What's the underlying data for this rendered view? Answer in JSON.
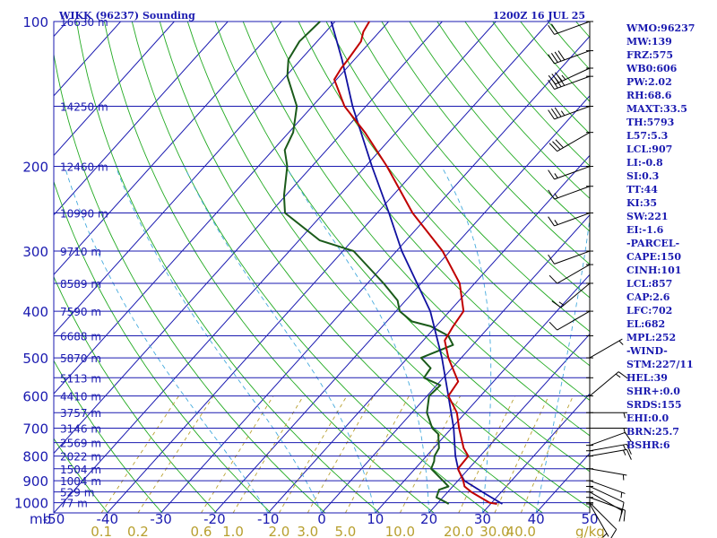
{
  "header": {
    "station": "WIKK (96237) Sounding",
    "time": "1200Z 16 JUL 25"
  },
  "axis": {
    "pressure_unit": "mb",
    "mixing_ratio_unit": "g/kg"
  },
  "indices": [
    "WMO:96237",
    "MW:139",
    "FRZ:575",
    "WB0:606",
    "PW:2.02",
    "RH:68.6",
    "MAXT:33.5",
    "TH:5793",
    "L57:5.3",
    "LCL:907",
    "LI:-0.8",
    "SI:0.3",
    "TT:44",
    "KI:35",
    "SW:221",
    "EI:-1.6",
    "-PARCEL-",
    "CAPE:150",
    "CINH:101",
    "LCL:857",
    "CAP:2.6",
    "LFC:702",
    "EL:682",
    "MPL:252",
    "-WIND-",
    "STM:227/11",
    "HEL:39",
    "SHR+:0.0",
    "SRDS:155",
    "EHI:0.0",
    "BRN:25.7",
    "BSHR:6"
  ],
  "colors": {
    "isobar": "#1a1ab0",
    "isotherm": "#1a1ab0",
    "dry_adiabat": "#22aa22",
    "moist_adiabat": "#44aadd",
    "mixing_ratio": "#b8a030",
    "temperature": "#c00000",
    "dewpoint": "#1a5a1a",
    "parcel": "#1010a0",
    "wind": "#000000"
  },
  "chart_data": {
    "type": "skew-t",
    "pressure_levels": [
      "100",
      "200",
      "300",
      "400",
      "500",
      "600",
      "700",
      "800",
      "900",
      "1000"
    ],
    "temperature_ticks": [
      "-50",
      "-40",
      "-30",
      "-20",
      "-10",
      "0",
      "10",
      "20",
      "30",
      "40",
      "50"
    ],
    "mixing_ratio_ticks": [
      "0.1",
      "0.2",
      "0.6",
      "1.0",
      "2.0",
      "3.0",
      "5.0",
      "10.0",
      "20.0",
      "30.0",
      "40.0"
    ],
    "heights": [
      {
        "p": 100,
        "label": "16630 m"
      },
      {
        "p": 150,
        "label": "14250 m"
      },
      {
        "p": 200,
        "label": "12460 m"
      },
      {
        "p": 250,
        "label": "10990 m"
      },
      {
        "p": 300,
        "label": "9710 m"
      },
      {
        "p": 350,
        "label": "8589 m"
      },
      {
        "p": 400,
        "label": "7590 m"
      },
      {
        "p": 450,
        "label": "6688 m"
      },
      {
        "p": 500,
        "label": "5870 m"
      },
      {
        "p": 550,
        "label": "5113 m"
      },
      {
        "p": 600,
        "label": "4410 m"
      },
      {
        "p": 650,
        "label": "3757 m"
      },
      {
        "p": 700,
        "label": "3146 m"
      },
      {
        "p": 750,
        "label": "2569 m"
      },
      {
        "p": 800,
        "label": "2022 m"
      },
      {
        "p": 850,
        "label": "1504 m"
      },
      {
        "p": 900,
        "label": "1004 m"
      },
      {
        "p": 950,
        "label": "529 m"
      },
      {
        "p": 1000,
        "label": "77 m"
      }
    ],
    "temperature_profile": [
      {
        "p": 1006,
        "t": 31.2
      },
      {
        "p": 1000,
        "t": 29.6
      },
      {
        "p": 950,
        "t": 24.4
      },
      {
        "p": 925,
        "t": 22.2
      },
      {
        "p": 900,
        "t": 21.0
      },
      {
        "p": 850,
        "t": 18.0
      },
      {
        "p": 800,
        "t": 17.8
      },
      {
        "p": 770,
        "t": 15.6
      },
      {
        "p": 700,
        "t": 11.4
      },
      {
        "p": 650,
        "t": 8.4
      },
      {
        "p": 600,
        "t": 4.0
      },
      {
        "p": 560,
        "t": 3.4
      },
      {
        "p": 500,
        "t": -2.4
      },
      {
        "p": 460,
        "t": -6.0
      },
      {
        "p": 430,
        "t": -6.8
      },
      {
        "p": 400,
        "t": -7.4
      },
      {
        "p": 350,
        "t": -12.8
      },
      {
        "p": 300,
        "t": -21.4
      },
      {
        "p": 250,
        "t": -33.4
      },
      {
        "p": 200,
        "t": -46.0
      },
      {
        "p": 170,
        "t": -55.8
      },
      {
        "p": 150,
        "t": -64.0
      },
      {
        "p": 132,
        "t": -70.4
      },
      {
        "p": 125,
        "t": -71.0
      },
      {
        "p": 120,
        "t": -71.2
      },
      {
        "p": 110,
        "t": -71.8
      },
      {
        "p": 105,
        "t": -73.0
      },
      {
        "p": 100,
        "t": -73.6
      }
    ],
    "dewpoint_profile": [
      {
        "p": 1006,
        "t": 22.2
      },
      {
        "p": 1000,
        "t": 21.6
      },
      {
        "p": 975,
        "t": 18.8
      },
      {
        "p": 940,
        "t": 18.0
      },
      {
        "p": 925,
        "t": 19.2
      },
      {
        "p": 900,
        "t": 17.2
      },
      {
        "p": 850,
        "t": 13.0
      },
      {
        "p": 820,
        "t": 12.3
      },
      {
        "p": 800,
        "t": 11.5
      },
      {
        "p": 770,
        "t": 11.0
      },
      {
        "p": 720,
        "t": 8.5
      },
      {
        "p": 700,
        "t": 6.4
      },
      {
        "p": 650,
        "t": 2.8
      },
      {
        "p": 600,
        "t": 0.4
      },
      {
        "p": 570,
        "t": 0.7
      },
      {
        "p": 550,
        "t": -3.6
      },
      {
        "p": 525,
        "t": -4.0
      },
      {
        "p": 500,
        "t": -7.5
      },
      {
        "p": 470,
        "t": -3.7
      },
      {
        "p": 450,
        "t": -6.1
      },
      {
        "p": 430,
        "t": -11.0
      },
      {
        "p": 420,
        "t": -15.3
      },
      {
        "p": 400,
        "t": -19.3
      },
      {
        "p": 380,
        "t": -21.5
      },
      {
        "p": 350,
        "t": -27.0
      },
      {
        "p": 300,
        "t": -38.0
      },
      {
        "p": 285,
        "t": -46.1
      },
      {
        "p": 250,
        "t": -57.2
      },
      {
        "p": 230,
        "t": -60.3
      },
      {
        "p": 200,
        "t": -64.6
      },
      {
        "p": 185,
        "t": -67.8
      },
      {
        "p": 170,
        "t": -69.2
      },
      {
        "p": 150,
        "t": -72.9
      },
      {
        "p": 130,
        "t": -79.7
      },
      {
        "p": 120,
        "t": -82.3
      },
      {
        "p": 110,
        "t": -83.3
      },
      {
        "p": 100,
        "t": -82.8
      }
    ],
    "parcel_profile": [
      {
        "p": 1006,
        "t": 32.2
      },
      {
        "p": 960,
        "t": 27.5
      },
      {
        "p": 900,
        "t": 21.2
      },
      {
        "p": 857,
        "t": 18.4
      },
      {
        "p": 800,
        "t": 15.4
      },
      {
        "p": 700,
        "t": 10.4
      },
      {
        "p": 600,
        "t": 4.0
      },
      {
        "p": 500,
        "t": -3.6
      },
      {
        "p": 400,
        "t": -13.6
      },
      {
        "p": 300,
        "t": -29.0
      },
      {
        "p": 250,
        "t": -37.8
      },
      {
        "p": 200,
        "t": -48.8
      },
      {
        "p": 150,
        "t": -62.5
      },
      {
        "p": 120,
        "t": -72.3
      },
      {
        "p": 100,
        "t": -80.7
      }
    ],
    "wind_profile": [
      {
        "p": 1006,
        "dir": 150,
        "spd": 5
      },
      {
        "p": 1000,
        "dir": 135,
        "spd": 10
      },
      {
        "p": 975,
        "dir": 110,
        "spd": 15
      },
      {
        "p": 950,
        "dir": 120,
        "spd": 10
      },
      {
        "p": 925,
        "dir": 115,
        "spd": 10
      },
      {
        "p": 900,
        "dir": 110,
        "spd": 5
      },
      {
        "p": 850,
        "dir": 100,
        "spd": 5
      },
      {
        "p": 800,
        "dir": 80,
        "spd": 15
      },
      {
        "p": 780,
        "dir": 80,
        "spd": 15
      },
      {
        "p": 760,
        "dir": 70,
        "spd": 10
      },
      {
        "p": 700,
        "dir": 90,
        "spd": 5
      },
      {
        "p": 650,
        "dir": 90,
        "spd": 5
      },
      {
        "p": 600,
        "dir": 50,
        "spd": 15
      },
      {
        "p": 550,
        "dir": 90,
        "spd": 0
      },
      {
        "p": 500,
        "dir": 60,
        "spd": 5
      },
      {
        "p": 450,
        "dir": 110,
        "spd": 0
      },
      {
        "p": 400,
        "dir": 240,
        "spd": 10
      },
      {
        "p": 350,
        "dir": 230,
        "spd": 15
      },
      {
        "p": 320,
        "dir": 240,
        "spd": 10
      },
      {
        "p": 300,
        "dir": 250,
        "spd": 10
      },
      {
        "p": 250,
        "dir": 250,
        "spd": 15
      },
      {
        "p": 220,
        "dir": 250,
        "spd": 15
      },
      {
        "p": 200,
        "dir": 250,
        "spd": 15
      },
      {
        "p": 170,
        "dir": 240,
        "spd": 30
      },
      {
        "p": 150,
        "dir": 250,
        "spd": 35
      },
      {
        "p": 130,
        "dir": 250,
        "spd": 40
      },
      {
        "p": 125,
        "dir": 245,
        "spd": 35
      },
      {
        "p": 115,
        "dir": 250,
        "spd": 40
      },
      {
        "p": 100,
        "dir": 250,
        "spd": 20
      }
    ],
    "xlim": [
      -50,
      50
    ],
    "ylim": [
      1050,
      100
    ],
    "y_scale": "log",
    "grid": true
  }
}
